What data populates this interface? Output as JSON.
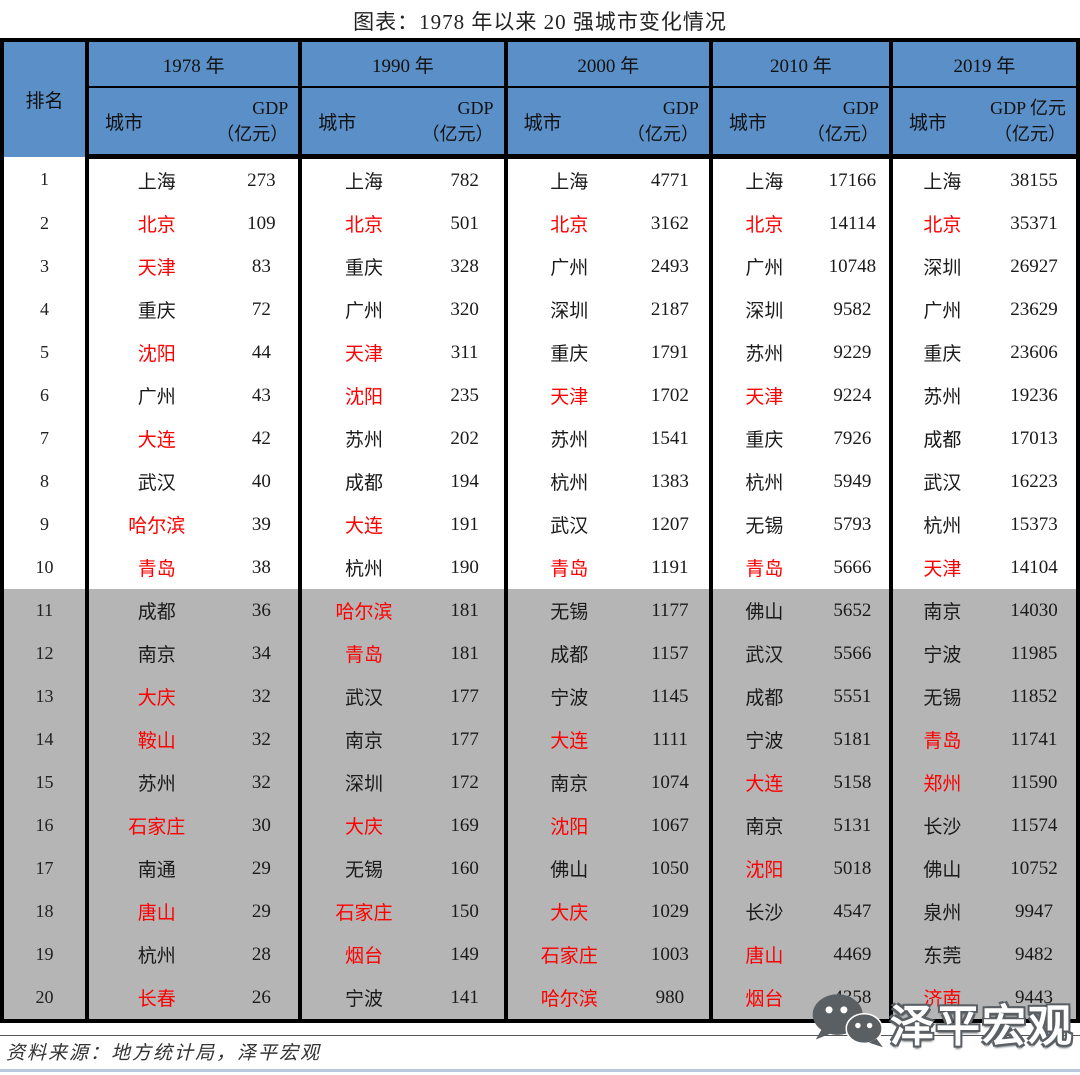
{
  "title": "图表：1978 年以来 20 强城市变化情况",
  "colors": {
    "header_blue": "#5b8fc7",
    "row_gray": "#b5b5b5",
    "highlight_red": "#fe0000",
    "border_black": "#000000",
    "watermark_gray": "#5a5f63",
    "bottom_line_blue": "#b9c8de"
  },
  "table": {
    "rank_header": "排名",
    "city_header": "城市",
    "years": [
      {
        "label": "1978 年",
        "gdp_line1": "GDP",
        "gdp_line2": "（亿元）"
      },
      {
        "label": "1990 年",
        "gdp_line1": "GDP",
        "gdp_line2": "（亿元）"
      },
      {
        "label": "2000 年",
        "gdp_line1": "GDP",
        "gdp_line2": "（亿元）"
      },
      {
        "label": "2010 年",
        "gdp_line1": "GDP",
        "gdp_line2": "（亿元）"
      },
      {
        "label": "2019 年",
        "gdp_line1": "GDP 亿元",
        "gdp_line2": "（亿元）"
      }
    ],
    "gray_rows_from_rank": 11,
    "rows": [
      {
        "rank": "1",
        "cells": [
          {
            "city": "上海",
            "gdp": "273",
            "red": false
          },
          {
            "city": "上海",
            "gdp": "782",
            "red": false
          },
          {
            "city": "上海",
            "gdp": "4771",
            "red": false
          },
          {
            "city": "上海",
            "gdp": "17166",
            "red": false
          },
          {
            "city": "上海",
            "gdp": "38155",
            "red": false
          }
        ]
      },
      {
        "rank": "2",
        "cells": [
          {
            "city": "北京",
            "gdp": "109",
            "red": true
          },
          {
            "city": "北京",
            "gdp": "501",
            "red": true
          },
          {
            "city": "北京",
            "gdp": "3162",
            "red": true
          },
          {
            "city": "北京",
            "gdp": "14114",
            "red": true
          },
          {
            "city": "北京",
            "gdp": "35371",
            "red": true
          }
        ]
      },
      {
        "rank": "3",
        "cells": [
          {
            "city": "天津",
            "gdp": "83",
            "red": true
          },
          {
            "city": "重庆",
            "gdp": "328",
            "red": false
          },
          {
            "city": "广州",
            "gdp": "2493",
            "red": false
          },
          {
            "city": "广州",
            "gdp": "10748",
            "red": false
          },
          {
            "city": "深圳",
            "gdp": "26927",
            "red": false
          }
        ]
      },
      {
        "rank": "4",
        "cells": [
          {
            "city": "重庆",
            "gdp": "72",
            "red": false
          },
          {
            "city": "广州",
            "gdp": "320",
            "red": false
          },
          {
            "city": "深圳",
            "gdp": "2187",
            "red": false
          },
          {
            "city": "深圳",
            "gdp": "9582",
            "red": false
          },
          {
            "city": "广州",
            "gdp": "23629",
            "red": false
          }
        ]
      },
      {
        "rank": "5",
        "cells": [
          {
            "city": "沈阳",
            "gdp": "44",
            "red": true
          },
          {
            "city": "天津",
            "gdp": "311",
            "red": true
          },
          {
            "city": "重庆",
            "gdp": "1791",
            "red": false
          },
          {
            "city": "苏州",
            "gdp": "9229",
            "red": false
          },
          {
            "city": "重庆",
            "gdp": "23606",
            "red": false
          }
        ]
      },
      {
        "rank": "6",
        "cells": [
          {
            "city": "广州",
            "gdp": "43",
            "red": false
          },
          {
            "city": "沈阳",
            "gdp": "235",
            "red": true
          },
          {
            "city": "天津",
            "gdp": "1702",
            "red": true
          },
          {
            "city": "天津",
            "gdp": "9224",
            "red": true
          },
          {
            "city": "苏州",
            "gdp": "19236",
            "red": false
          }
        ]
      },
      {
        "rank": "7",
        "cells": [
          {
            "city": "大连",
            "gdp": "42",
            "red": true
          },
          {
            "city": "苏州",
            "gdp": "202",
            "red": false
          },
          {
            "city": "苏州",
            "gdp": "1541",
            "red": false
          },
          {
            "city": "重庆",
            "gdp": "7926",
            "red": false
          },
          {
            "city": "成都",
            "gdp": "17013",
            "red": false
          }
        ]
      },
      {
        "rank": "8",
        "cells": [
          {
            "city": "武汉",
            "gdp": "40",
            "red": false
          },
          {
            "city": "成都",
            "gdp": "194",
            "red": false
          },
          {
            "city": "杭州",
            "gdp": "1383",
            "red": false
          },
          {
            "city": "杭州",
            "gdp": "5949",
            "red": false
          },
          {
            "city": "武汉",
            "gdp": "16223",
            "red": false
          }
        ]
      },
      {
        "rank": "9",
        "cells": [
          {
            "city": "哈尔滨",
            "gdp": "39",
            "red": true
          },
          {
            "city": "大连",
            "gdp": "191",
            "red": true
          },
          {
            "city": "武汉",
            "gdp": "1207",
            "red": false
          },
          {
            "city": "无锡",
            "gdp": "5793",
            "red": false
          },
          {
            "city": "杭州",
            "gdp": "15373",
            "red": false
          }
        ]
      },
      {
        "rank": "10",
        "cells": [
          {
            "city": "青岛",
            "gdp": "38",
            "red": true
          },
          {
            "city": "杭州",
            "gdp": "190",
            "red": false
          },
          {
            "city": "青岛",
            "gdp": "1191",
            "red": true
          },
          {
            "city": "青岛",
            "gdp": "5666",
            "red": true
          },
          {
            "city": "天津",
            "gdp": "14104",
            "red": true
          }
        ]
      },
      {
        "rank": "11",
        "cells": [
          {
            "city": "成都",
            "gdp": "36",
            "red": false
          },
          {
            "city": "哈尔滨",
            "gdp": "181",
            "red": true
          },
          {
            "city": "无锡",
            "gdp": "1177",
            "red": false
          },
          {
            "city": "佛山",
            "gdp": "5652",
            "red": false
          },
          {
            "city": "南京",
            "gdp": "14030",
            "red": false
          }
        ]
      },
      {
        "rank": "12",
        "cells": [
          {
            "city": "南京",
            "gdp": "34",
            "red": false
          },
          {
            "city": "青岛",
            "gdp": "181",
            "red": true
          },
          {
            "city": "成都",
            "gdp": "1157",
            "red": false
          },
          {
            "city": "武汉",
            "gdp": "5566",
            "red": false
          },
          {
            "city": "宁波",
            "gdp": "11985",
            "red": false
          }
        ]
      },
      {
        "rank": "13",
        "cells": [
          {
            "city": "大庆",
            "gdp": "32",
            "red": true
          },
          {
            "city": "武汉",
            "gdp": "177",
            "red": false
          },
          {
            "city": "宁波",
            "gdp": "1145",
            "red": false
          },
          {
            "city": "成都",
            "gdp": "5551",
            "red": false
          },
          {
            "city": "无锡",
            "gdp": "11852",
            "red": false
          }
        ]
      },
      {
        "rank": "14",
        "cells": [
          {
            "city": "鞍山",
            "gdp": "32",
            "red": true
          },
          {
            "city": "南京",
            "gdp": "177",
            "red": false
          },
          {
            "city": "大连",
            "gdp": "1111",
            "red": true
          },
          {
            "city": "宁波",
            "gdp": "5181",
            "red": false
          },
          {
            "city": "青岛",
            "gdp": "11741",
            "red": true
          }
        ]
      },
      {
        "rank": "15",
        "cells": [
          {
            "city": "苏州",
            "gdp": "32",
            "red": false
          },
          {
            "city": "深圳",
            "gdp": "172",
            "red": false
          },
          {
            "city": "南京",
            "gdp": "1074",
            "red": false
          },
          {
            "city": "大连",
            "gdp": "5158",
            "red": true
          },
          {
            "city": "郑州",
            "gdp": "11590",
            "red": true
          }
        ]
      },
      {
        "rank": "16",
        "cells": [
          {
            "city": "石家庄",
            "gdp": "30",
            "red": true
          },
          {
            "city": "大庆",
            "gdp": "169",
            "red": true
          },
          {
            "city": "沈阳",
            "gdp": "1067",
            "red": true
          },
          {
            "city": "南京",
            "gdp": "5131",
            "red": false
          },
          {
            "city": "长沙",
            "gdp": "11574",
            "red": false
          }
        ]
      },
      {
        "rank": "17",
        "cells": [
          {
            "city": "南通",
            "gdp": "29",
            "red": false
          },
          {
            "city": "无锡",
            "gdp": "160",
            "red": false
          },
          {
            "city": "佛山",
            "gdp": "1050",
            "red": false
          },
          {
            "city": "沈阳",
            "gdp": "5018",
            "red": true
          },
          {
            "city": "佛山",
            "gdp": "10752",
            "red": false
          }
        ]
      },
      {
        "rank": "18",
        "cells": [
          {
            "city": "唐山",
            "gdp": "29",
            "red": true
          },
          {
            "city": "石家庄",
            "gdp": "150",
            "red": true
          },
          {
            "city": "大庆",
            "gdp": "1029",
            "red": true
          },
          {
            "city": "长沙",
            "gdp": "4547",
            "red": false
          },
          {
            "city": "泉州",
            "gdp": "9947",
            "red": false
          }
        ]
      },
      {
        "rank": "19",
        "cells": [
          {
            "city": "杭州",
            "gdp": "28",
            "red": false
          },
          {
            "city": "烟台",
            "gdp": "149",
            "red": true
          },
          {
            "city": "石家庄",
            "gdp": "1003",
            "red": true
          },
          {
            "city": "唐山",
            "gdp": "4469",
            "red": true
          },
          {
            "city": "东莞",
            "gdp": "9482",
            "red": false
          }
        ]
      },
      {
        "rank": "20",
        "cells": [
          {
            "city": "长春",
            "gdp": "26",
            "red": true
          },
          {
            "city": "宁波",
            "gdp": "141",
            "red": false
          },
          {
            "city": "哈尔滨",
            "gdp": "980",
            "red": true
          },
          {
            "city": "烟台",
            "gdp": "4358",
            "red": true
          },
          {
            "city": "济南",
            "gdp": "9443",
            "red": true
          }
        ]
      }
    ]
  },
  "footer": {
    "source": "资料来源：地方统计局，泽平宏观"
  },
  "watermark": {
    "label": "泽平宏观",
    "icon": "wechat-icon"
  }
}
